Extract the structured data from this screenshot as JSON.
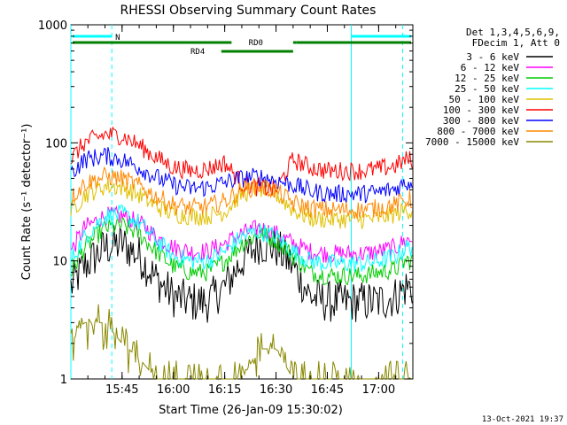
{
  "chart_data": {
    "type": "line",
    "title": "RHESSI Observing Summary Count Rates",
    "xlabel": "Start Time (26-Jan-09 15:30:02)",
    "ylabel": "Count Rate (s⁻¹ detector⁻¹)",
    "y_scale": "log",
    "ylim": [
      1,
      1000
    ],
    "y_ticks": [
      {
        "value": 1,
        "label": "1"
      },
      {
        "value": 10,
        "label": "10"
      },
      {
        "value": 100,
        "label": "100"
      },
      {
        "value": 1000,
        "label": "1000"
      }
    ],
    "xlim": [
      "15:30:02",
      "17:10:00"
    ],
    "x_ticks": [
      "15:45",
      "16:00",
      "16:15",
      "16:30",
      "16:45",
      "17:00"
    ],
    "legend_position": "right",
    "legend_header": [
      "Det 1,3,4,5,6,9,",
      "FDecim 1, Att 0"
    ],
    "series": [
      {
        "name": "3 - 6 keV",
        "color": "#000000",
        "x": [
          "15:30",
          "15:34",
          "15:40",
          "15:45",
          "15:50",
          "15:55",
          "16:00",
          "16:05",
          "16:10",
          "16:15",
          "16:20",
          "16:25",
          "16:30",
          "16:35",
          "16:40",
          "16:45",
          "16:50",
          "16:55",
          "17:00",
          "17:05",
          "17:08"
        ],
        "values": [
          6,
          9,
          13,
          14,
          11,
          7,
          5,
          4.5,
          4.5,
          6,
          10,
          14,
          13,
          9,
          5,
          4.5,
          4.5,
          4.5,
          4.5,
          5,
          6
        ]
      },
      {
        "name": "6 - 12 keV",
        "color": "#ff00ff",
        "x": [
          "15:30",
          "15:34",
          "15:40",
          "15:45",
          "15:50",
          "15:55",
          "16:00",
          "16:05",
          "16:10",
          "16:15",
          "16:20",
          "16:25",
          "16:30",
          "16:35",
          "16:40",
          "16:45",
          "16:50",
          "16:55",
          "17:00",
          "17:05",
          "17:08"
        ],
        "values": [
          12,
          19,
          24,
          24,
          21,
          16,
          13,
          12,
          12,
          14,
          17,
          19,
          17,
          14,
          12,
          11.5,
          11.5,
          11.5,
          12,
          13,
          15
        ]
      },
      {
        "name": "12 - 25 keV",
        "color": "#00cc00",
        "x": [
          "15:30",
          "15:34",
          "15:40",
          "15:45",
          "15:50",
          "15:55",
          "16:00",
          "16:05",
          "16:10",
          "16:15",
          "16:20",
          "16:25",
          "16:30",
          "16:35",
          "16:40",
          "16:45",
          "16:50",
          "16:55",
          "17:00",
          "17:05",
          "17:08"
        ],
        "values": [
          8,
          13,
          19,
          20,
          17,
          12,
          9,
          8,
          8,
          10,
          14,
          17,
          15,
          11,
          8,
          7.5,
          7.5,
          7.5,
          8,
          8.5,
          10
        ]
      },
      {
        "name": "25 - 50 keV",
        "color": "#00ffff",
        "x": [
          "15:30",
          "15:34",
          "15:40",
          "15:45",
          "15:50",
          "15:55",
          "16:00",
          "16:05",
          "16:10",
          "16:15",
          "16:20",
          "16:25",
          "16:30",
          "16:35",
          "16:40",
          "16:45",
          "16:50",
          "16:55",
          "17:00",
          "17:05",
          "17:08"
        ],
        "values": [
          10,
          16,
          24,
          25,
          21,
          15,
          11,
          10,
          10,
          12,
          16,
          18,
          16,
          12,
          10,
          9.5,
          9.5,
          9.5,
          10,
          11,
          13
        ]
      },
      {
        "name": "50 - 100 keV",
        "color": "#e0c000",
        "x": [
          "15:30",
          "15:34",
          "15:40",
          "15:45",
          "15:50",
          "15:55",
          "16:00",
          "16:05",
          "16:10",
          "16:15",
          "16:20",
          "16:25",
          "16:30",
          "16:35",
          "16:40",
          "16:45",
          "16:50",
          "16:55",
          "17:00",
          "17:05",
          "17:08"
        ],
        "values": [
          26,
          36,
          43,
          42,
          36,
          29,
          25,
          24,
          24,
          26,
          37,
          41,
          37,
          27,
          23,
          22.5,
          22.5,
          22.5,
          23,
          25,
          27
        ]
      },
      {
        "name": "100 - 300 keV",
        "color": "#ff0000",
        "x": [
          "15:30",
          "15:34",
          "15:40",
          "15:45",
          "15:50",
          "15:55",
          "16:00",
          "16:05",
          "16:10",
          "16:15",
          "16:20",
          "16:25",
          "16:30",
          "16:35",
          "16:40",
          "16:45",
          "16:50",
          "16:55",
          "17:00",
          "17:05",
          "17:08"
        ],
        "values": [
          72,
          100,
          118,
          115,
          95,
          75,
          62,
          58,
          60,
          68,
          45,
          42,
          40,
          72,
          62,
          58,
          58,
          58,
          60,
          64,
          72
        ]
      },
      {
        "name": "300 - 800 keV",
        "color": "#0000ff",
        "x": [
          "15:30",
          "15:34",
          "15:40",
          "15:45",
          "15:50",
          "15:55",
          "16:00",
          "16:05",
          "16:10",
          "16:15",
          "16:20",
          "16:25",
          "16:30",
          "16:35",
          "16:40",
          "16:45",
          "16:50",
          "16:55",
          "17:00",
          "17:05",
          "17:08"
        ],
        "values": [
          55,
          72,
          78,
          72,
          62,
          51,
          44,
          41,
          42,
          46,
          50,
          52,
          48,
          44,
          39,
          37,
          37,
          37,
          38,
          41,
          46
        ]
      },
      {
        "name": "800 - 7000 keV",
        "color": "#ff8800",
        "x": [
          "15:30",
          "15:34",
          "15:40",
          "15:45",
          "15:50",
          "15:55",
          "16:00",
          "16:05",
          "16:10",
          "16:15",
          "16:20",
          "16:25",
          "16:30",
          "16:35",
          "16:40",
          "16:45",
          "16:50",
          "16:55",
          "17:00",
          "17:05",
          "17:08"
        ],
        "values": [
          34,
          45,
          52,
          50,
          43,
          35,
          30,
          28,
          29,
          32,
          40,
          43,
          39,
          31,
          28,
          27,
          27,
          27,
          28,
          30,
          33
        ]
      },
      {
        "name": "7000 - 15000 keV",
        "color": "#888800",
        "x": [
          "15:30",
          "15:34",
          "15:40",
          "15:45",
          "15:50",
          "15:55",
          "16:00",
          "16:05",
          "16:10",
          "16:15",
          "16:20",
          "16:25",
          "16:30",
          "16:35",
          "16:40",
          "16:45",
          "16:50",
          "16:55",
          "17:00",
          "17:05",
          "17:08"
        ],
        "values": [
          2,
          3,
          3,
          2,
          1.5,
          1,
          1,
          1,
          1,
          1,
          1,
          1.8,
          1.8,
          1,
          1,
          1,
          1,
          1,
          1,
          1,
          1
        ]
      }
    ],
    "annotations": [
      {
        "label": "N",
        "color": "#00ffff"
      },
      {
        "label": "RD0",
        "color": "#008000"
      },
      {
        "label": "RD4",
        "color": "#008000"
      }
    ],
    "vertical_markers_solid": [
      "15:30:02",
      "16:52"
    ],
    "vertical_markers_dashed": [
      "15:42",
      "17:07"
    ],
    "footer_timestamp": "13-Oct-2021 19:37"
  }
}
